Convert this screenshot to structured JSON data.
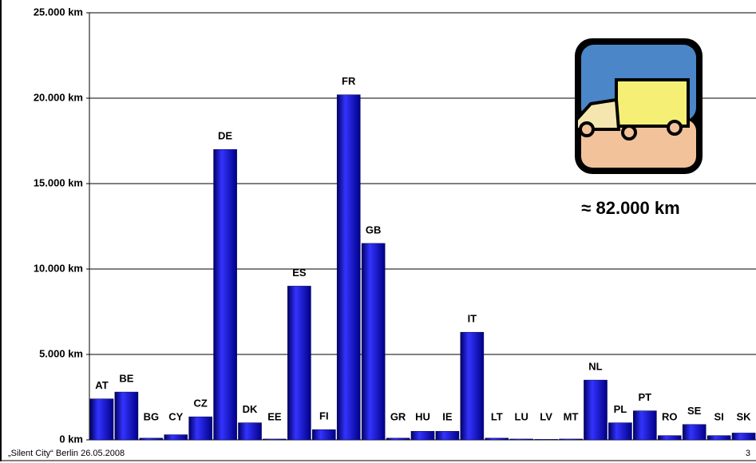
{
  "chart_data": {
    "type": "bar",
    "categories": [
      "AT",
      "BE",
      "BG",
      "CY",
      "CZ",
      "DE",
      "DK",
      "EE",
      "ES",
      "FI",
      "FR",
      "GB",
      "GR",
      "HU",
      "IE",
      "IT",
      "LT",
      "LU",
      "LV",
      "MT",
      "NL",
      "PL",
      "PT",
      "RO",
      "SE",
      "SI",
      "SK"
    ],
    "values": [
      2400,
      2800,
      100,
      300,
      1350,
      17000,
      1000,
      50,
      9000,
      600,
      20200,
      11500,
      100,
      500,
      500,
      6300,
      100,
      50,
      30,
      50,
      3500,
      1000,
      1700,
      250,
      900,
      250,
      400
    ],
    "color": "#0000cc",
    "ylim": [
      0,
      25000
    ],
    "yticks": [
      {
        "value": 0,
        "label": "0 km"
      },
      {
        "value": 5000,
        "label": "5.000 km"
      },
      {
        "value": 10000,
        "label": "10.000 km"
      },
      {
        "value": 15000,
        "label": "15.000 km"
      },
      {
        "value": 20000,
        "label": "20.000 km"
      },
      {
        "value": 25000,
        "label": "25.000 km"
      }
    ],
    "grid": true,
    "annotation": "≈ 82.000 km"
  },
  "footer": {
    "text": "„Silent City“ Berlin 26.05.2008",
    "page": "3"
  }
}
